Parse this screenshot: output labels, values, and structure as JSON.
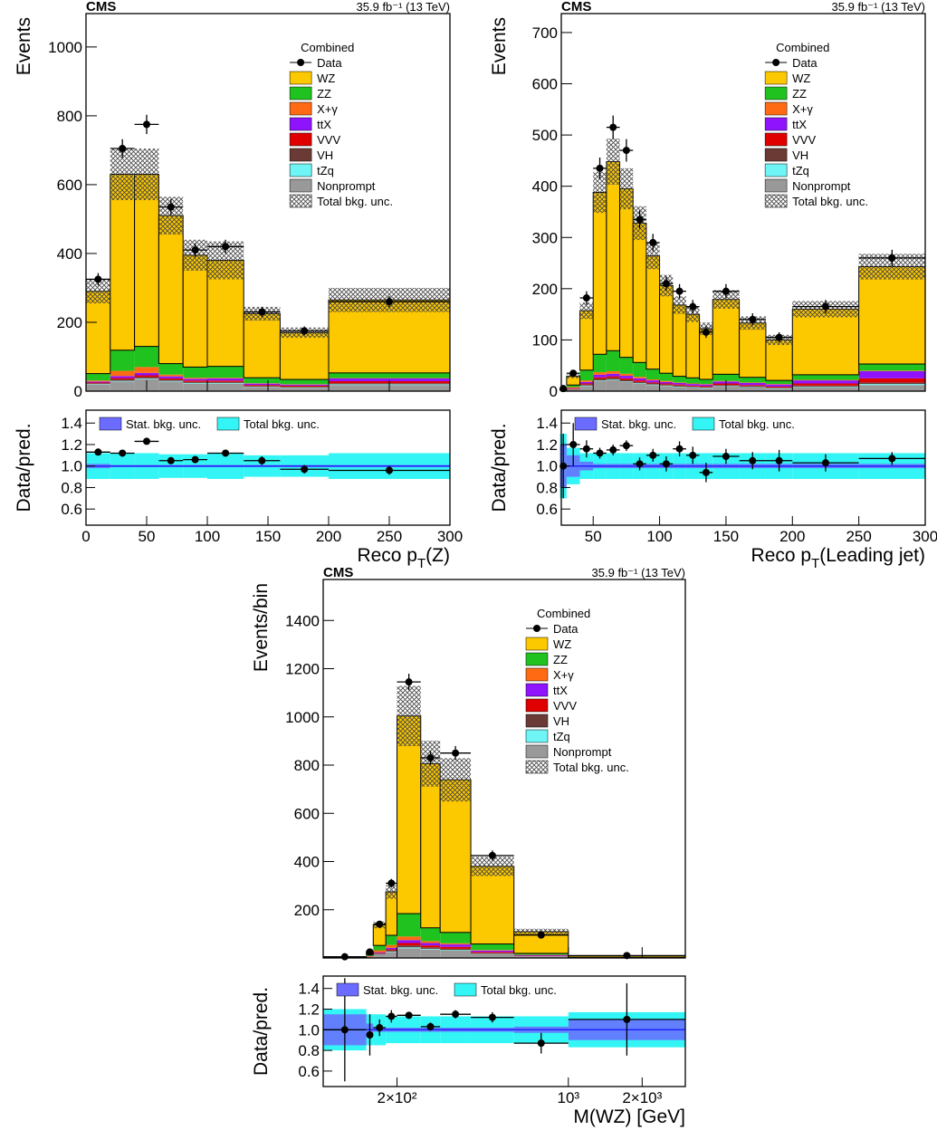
{
  "chart_data": [
    {
      "type": "stacked-histogram",
      "title": "CMS",
      "lumi": "35.9 fb⁻¹ (13 TeV)",
      "legend_title": "Combined",
      "xlabel": [
        {
          "text": "Reco p"
        },
        {
          "text": "T",
          "sub": true
        },
        {
          "text": "(Z)"
        }
      ],
      "ylabel": "Events",
      "bins": [
        0,
        20,
        40,
        60,
        80,
        100,
        130,
        160,
        200,
        300
      ],
      "xlim": [
        0,
        300
      ],
      "xticks": [
        0,
        50,
        100,
        150,
        200,
        250,
        300
      ],
      "ylim": [
        0,
        1097
      ],
      "yticks": [
        0,
        200,
        400,
        600,
        800,
        1000
      ],
      "series": [
        {
          "name": "WZ",
          "color": "#fcc800",
          "values": [
            239,
            511,
            500,
            430,
            325,
            308,
            186,
            136,
            212
          ]
        },
        {
          "name": "ZZ",
          "color": "#1fc21f",
          "values": [
            20,
            60,
            60,
            32,
            31,
            33,
            16,
            14,
            15
          ]
        },
        {
          "name": "X+γ",
          "color": "#ff6a13",
          "values": [
            3,
            15,
            17,
            5,
            3,
            2,
            1,
            1,
            1
          ]
        },
        {
          "name": "ttX",
          "color": "#9013fe",
          "values": [
            3,
            6,
            7,
            6,
            5,
            6,
            4,
            3,
            8
          ]
        },
        {
          "name": "VVV",
          "color": "#e00000",
          "values": [
            2,
            4,
            5,
            4,
            4,
            4,
            3,
            3,
            6
          ]
        },
        {
          "name": "VH",
          "color": "#6b3a35",
          "values": [
            2,
            4,
            4,
            3,
            3,
            3,
            2,
            2,
            3
          ]
        },
        {
          "name": "tZq",
          "color": "#6ff5f5",
          "values": [
            1,
            2,
            2,
            2,
            2,
            2,
            1,
            1,
            2
          ]
        },
        {
          "name": "Nonprompt",
          "color": "#999999",
          "values": [
            20,
            28,
            35,
            28,
            22,
            22,
            12,
            10,
            18
          ]
        }
      ],
      "data": {
        "name": "Data",
        "color": "#000000",
        "values": [
          325,
          705,
          775,
          535,
          410,
          420,
          230,
          175,
          260
        ],
        "errors": [
          18,
          27,
          28,
          23,
          20,
          20,
          15,
          13,
          16
        ]
      },
      "unc": {
        "name": "Total bkg. unc.",
        "values": [
          35,
          75,
          75,
          55,
          45,
          55,
          20,
          15,
          35
        ]
      },
      "ratio": {
        "ylabel": "Data/pred.",
        "ylim": [
          0.45,
          1.52
        ],
        "yticks": [
          0.6,
          0.8,
          {
            "value": 1,
            "label": "1.0"
          },
          1.2,
          1.4
        ],
        "values": [
          1.13,
          1.12,
          1.23,
          1.05,
          1.06,
          1.12,
          1.05,
          0.97,
          0.96
        ],
        "errors": [
          0.03,
          0.02,
          0.02,
          0.02,
          0.03,
          0.03,
          0.04,
          0.04,
          0.04
        ],
        "stat": {
          "name": "Stat. bkg. unc.",
          "color": "#6b6bff",
          "values": [
            0.02,
            0.01,
            0.01,
            0.01,
            0.01,
            0.01,
            0.01,
            0.01,
            0.01
          ]
        },
        "total": {
          "name": "Total bkg. unc.",
          "color": "#33f5f5",
          "values": [
            0.12,
            0.12,
            0.12,
            0.11,
            0.11,
            0.12,
            0.1,
            0.1,
            0.12
          ]
        }
      }
    },
    {
      "type": "stacked-histogram",
      "title": "CMS",
      "lumi": "35.9 fb⁻¹ (13 TeV)",
      "legend_title": "Combined",
      "xlabel": [
        {
          "text": "Reco p"
        },
        {
          "text": "T",
          "sub": true
        },
        {
          "text": "(Leading jet)"
        }
      ],
      "ylabel": "Events",
      "bins": [
        25,
        30,
        40,
        50,
        60,
        70,
        80,
        90,
        100,
        110,
        120,
        130,
        140,
        160,
        180,
        200,
        250,
        300
      ],
      "xlim": [
        26,
        300
      ],
      "xticks": [
        50,
        100,
        150,
        200,
        250,
        300
      ],
      "ylim": [
        0,
        737
      ],
      "yticks": [
        0,
        100,
        200,
        300,
        400,
        500,
        600,
        700
      ],
      "series": [
        {
          "name": "WZ",
          "color": "#fcc800",
          "values": [
            3,
            17,
            116,
            316,
            369,
            329,
            272,
            221,
            171,
            139,
            124,
            99,
            146,
            106,
            79,
            128,
            190
          ]
        },
        {
          "name": "ZZ",
          "color": "#1fc21f",
          "values": [
            1,
            4,
            20,
            35,
            40,
            32,
            28,
            20,
            15,
            12,
            11,
            9,
            13,
            10,
            7,
            10,
            13
          ]
        },
        {
          "name": "X+γ",
          "color": "#ff6a13",
          "values": [
            0,
            2,
            3,
            5,
            5,
            4,
            3,
            2,
            2,
            1,
            1,
            1,
            1,
            1,
            1,
            1,
            1
          ]
        },
        {
          "name": "ttX",
          "color": "#9013fe",
          "values": [
            0,
            1,
            3,
            5,
            5,
            5,
            4,
            4,
            3,
            3,
            3,
            3,
            4,
            4,
            4,
            6,
            14
          ]
        },
        {
          "name": "VVV",
          "color": "#e00000",
          "values": [
            0,
            1,
            2,
            3,
            3,
            3,
            3,
            2,
            2,
            2,
            2,
            2,
            3,
            2,
            2,
            4,
            8
          ]
        },
        {
          "name": "VH",
          "color": "#6b3a35",
          "values": [
            0,
            1,
            2,
            3,
            3,
            3,
            2,
            2,
            2,
            2,
            1,
            1,
            2,
            2,
            1,
            2,
            3
          ]
        },
        {
          "name": "tZq",
          "color": "#6ff5f5",
          "values": [
            0,
            0,
            1,
            1,
            1,
            1,
            1,
            1,
            1,
            1,
            1,
            1,
            1,
            1,
            1,
            1,
            2
          ]
        },
        {
          "name": "Nonprompt",
          "color": "#999999",
          "values": [
            1,
            3,
            10,
            20,
            22,
            18,
            15,
            12,
            10,
            8,
            7,
            6,
            9,
            7,
            5,
            8,
            12
          ]
        }
      ],
      "data": {
        "name": "Data",
        "color": "#000000",
        "values": [
          5,
          35,
          182,
          435,
          515,
          470,
          335,
          290,
          210,
          195,
          165,
          115,
          195,
          140,
          105,
          165,
          260
        ],
        "errors": [
          2,
          6,
          13,
          21,
          23,
          22,
          18,
          17,
          14,
          14,
          13,
          11,
          14,
          12,
          10,
          13,
          16
        ]
      },
      "unc": {
        "name": "Total bkg. unc.",
        "values": [
          2,
          4,
          16,
          40,
          45,
          40,
          33,
          26,
          21,
          17,
          15,
          12,
          18,
          13,
          10,
          16,
          25
        ]
      },
      "ratio": {
        "ylabel": "Data/pred.",
        "ylim": [
          0.45,
          1.52
        ],
        "yticks": [
          0.6,
          0.8,
          {
            "value": 1,
            "label": "1.0"
          },
          1.2,
          1.4
        ],
        "values": [
          1.0,
          1.2,
          1.16,
          1.12,
          1.15,
          1.19,
          1.02,
          1.1,
          1.02,
          1.16,
          1.1,
          0.94,
          1.09,
          1.05,
          1.05,
          1.03,
          1.07
        ],
        "errors": [
          0.3,
          0.2,
          0.08,
          0.05,
          0.05,
          0.05,
          0.06,
          0.06,
          0.07,
          0.07,
          0.08,
          0.09,
          0.07,
          0.08,
          0.1,
          0.08,
          0.06
        ],
        "stat": {
          "name": "Stat. bkg. unc.",
          "color": "#6b6bff",
          "values": [
            0.2,
            0.1,
            0.04,
            0.02,
            0.02,
            0.02,
            0.02,
            0.02,
            0.02,
            0.02,
            0.02,
            0.02,
            0.02,
            0.02,
            0.02,
            0.02,
            0.02
          ]
        },
        "total": {
          "name": "Total bkg. unc.",
          "color": "#33f5f5",
          "values": [
            0.3,
            0.17,
            0.12,
            0.12,
            0.12,
            0.12,
            0.12,
            0.12,
            0.12,
            0.12,
            0.12,
            0.12,
            0.12,
            0.12,
            0.12,
            0.12,
            0.12
          ]
        }
      }
    },
    {
      "type": "stacked-histogram",
      "title": "CMS",
      "lumi": "35.9 fb⁻¹ (13 TeV)",
      "legend_title": "Combined",
      "xlabel": [
        {
          "text": "M(WZ) [GeV]"
        }
      ],
      "ylabel": "Events/bin",
      "xscale": "log",
      "bins": [
        100,
        150,
        160,
        180,
        200,
        250,
        300,
        400,
        600,
        1000,
        3000
      ],
      "xlim": [
        100,
        3000
      ],
      "xticks": [
        {
          "value": 200,
          "label": "2×10²"
        },
        {
          "value": 1000,
          "label": "10³"
        },
        {
          "value": 2000,
          "label": "2×10³"
        }
      ],
      "ylim": [
        0,
        1570
      ],
      "yticks": [
        200,
        400,
        600,
        800,
        1000,
        1200,
        1400
      ],
      "series": [
        {
          "name": "WZ",
          "color": "#fcc800",
          "values": [
            2,
            14,
            85,
            180,
            820,
            681,
            633,
            322,
            90,
            6
          ]
        },
        {
          "name": "ZZ",
          "color": "#1fc21f",
          "values": [
            1,
            4,
            20,
            40,
            95,
            55,
            45,
            25,
            6,
            1
          ]
        },
        {
          "name": "X+γ",
          "color": "#ff6a13",
          "values": [
            1,
            3,
            8,
            12,
            15,
            8,
            5,
            2,
            1,
            0
          ]
        },
        {
          "name": "ttX",
          "color": "#9013fe",
          "values": [
            0,
            1,
            3,
            6,
            12,
            10,
            10,
            6,
            3,
            1
          ]
        },
        {
          "name": "VVV",
          "color": "#e00000",
          "values": [
            0,
            0,
            2,
            4,
            10,
            8,
            8,
            5,
            2,
            0
          ]
        },
        {
          "name": "VH",
          "color": "#6b3a35",
          "values": [
            0,
            1,
            3,
            5,
            8,
            6,
            5,
            3,
            1,
            0
          ]
        },
        {
          "name": "tZq",
          "color": "#6ff5f5",
          "values": [
            0,
            0,
            1,
            2,
            4,
            3,
            3,
            2,
            1,
            0
          ]
        },
        {
          "name": "Nonprompt",
          "color": "#999999",
          "values": [
            1,
            3,
            15,
            25,
            40,
            35,
            30,
            15,
            5,
            1
          ]
        }
      ],
      "data": {
        "name": "Data",
        "color": "#000000",
        "values": [
          5,
          25,
          140,
          310,
          1145,
          830,
          850,
          425,
          95,
          10
        ],
        "errors": [
          2,
          5,
          12,
          18,
          34,
          29,
          29,
          21,
          10,
          3
        ]
      },
      "unc": {
        "name": "Total bkg. unc.",
        "values": [
          2,
          4,
          14,
          28,
          125,
          95,
          90,
          40,
          12,
          2
        ]
      },
      "ratio": {
        "ylabel": "Data/pred.",
        "ylim": [
          0.45,
          1.52
        ],
        "yticks": [
          0.6,
          0.8,
          {
            "value": 1,
            "label": "1.0"
          },
          1.2,
          1.4
        ],
        "values": [
          1.0,
          0.95,
          1.02,
          1.13,
          1.14,
          1.03,
          1.15,
          1.12,
          0.87,
          1.1
        ],
        "errors": [
          0.5,
          0.2,
          0.08,
          0.06,
          0.03,
          0.04,
          0.04,
          0.05,
          0.1,
          0.35
        ],
        "stat": {
          "name": "Stat. bkg. unc.",
          "color": "#6b6bff",
          "values": [
            0.15,
            0.06,
            0.02,
            0.02,
            0.02,
            0.02,
            0.02,
            0.02,
            0.03,
            0.1
          ]
        },
        "total": {
          "name": "Total bkg. unc.",
          "color": "#33f5f5",
          "values": [
            0.2,
            0.15,
            0.15,
            0.13,
            0.13,
            0.13,
            0.13,
            0.13,
            0.13,
            0.17
          ]
        }
      }
    }
  ]
}
